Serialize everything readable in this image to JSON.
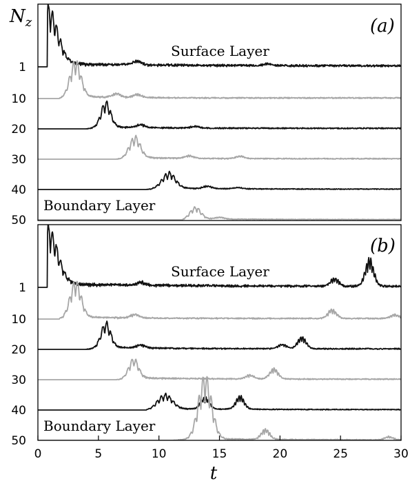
{
  "chart_data": [
    {
      "type": "line",
      "panel_label": "(a)",
      "y_label": "N_z",
      "x_label": "t",
      "xlim": [
        0,
        30
      ],
      "y_tick_labels": [
        "1",
        "10",
        "20",
        "30",
        "40",
        "50"
      ],
      "annotations": [
        "Surface Layer",
        "Boundary Layer"
      ],
      "colors": {
        "dark": "#111111",
        "light": "#a6a6a6"
      },
      "series": [
        {
          "layer": 1,
          "color": "dark",
          "peak_t": 0.8,
          "peak_height": 85,
          "peak_width": 0.8,
          "noise_amp": 5.0,
          "noise_decay": 0.12,
          "onset": 0.8,
          "extra_bursts": [
            {
              "t": 8.2,
              "h": 6
            },
            {
              "t": 19,
              "h": 3
            }
          ]
        },
        {
          "layer": 10,
          "color": "light",
          "peak_t": 3.1,
          "peak_height": 55,
          "peak_width": 0.45,
          "noise_amp": 3.0,
          "noise_decay": 0.25,
          "onset": 1.8,
          "extra_bursts": [
            {
              "t": 6.5,
              "h": 6
            },
            {
              "t": 8.2,
              "h": 5
            }
          ]
        },
        {
          "layer": 20,
          "color": "dark",
          "peak_t": 5.6,
          "peak_height": 38,
          "peak_width": 0.4,
          "noise_amp": 3.0,
          "noise_decay": 0.25,
          "onset": 4.0,
          "extra_bursts": [
            {
              "t": 8.5,
              "h": 5
            },
            {
              "t": 13,
              "h": 3
            }
          ]
        },
        {
          "layer": 30,
          "color": "light",
          "peak_t": 8.0,
          "peak_height": 32,
          "peak_width": 0.45,
          "noise_amp": 2.5,
          "noise_decay": 0.25,
          "onset": 6.5,
          "extra_bursts": [
            {
              "t": 12.5,
              "h": 4
            },
            {
              "t": 16.7,
              "h": 4
            }
          ]
        },
        {
          "layer": 40,
          "color": "dark",
          "peak_t": 10.8,
          "peak_height": 24,
          "peak_width": 0.55,
          "noise_amp": 2.0,
          "noise_decay": 0.2,
          "onset": 9.0,
          "extra_bursts": [
            {
              "t": 14,
              "h": 4
            },
            {
              "t": 16.5,
              "h": 2
            }
          ]
        },
        {
          "layer": 50,
          "color": "light",
          "peak_t": 13.0,
          "peak_height": 18,
          "peak_width": 0.45,
          "noise_amp": 1.5,
          "noise_decay": 0.2,
          "onset": 12.0,
          "extra_bursts": [
            {
              "t": 15,
              "h": 3
            }
          ]
        }
      ]
    },
    {
      "type": "line",
      "panel_label": "(b)",
      "y_label": "N_z",
      "x_label": "t",
      "xlim": [
        0,
        30
      ],
      "x_ticks": [
        0,
        5,
        10,
        15,
        20,
        25,
        30
      ],
      "y_tick_labels": [
        "1",
        "10",
        "20",
        "30",
        "40",
        "50"
      ],
      "annotations": [
        "Surface Layer",
        "Boundary Layer"
      ],
      "colors": {
        "dark": "#111111",
        "light": "#a6a6a6"
      },
      "series": [
        {
          "layer": 1,
          "color": "dark",
          "peak_t": 0.8,
          "peak_height": 85,
          "peak_width": 0.8,
          "noise_amp": 5.0,
          "noise_decay": 0.1,
          "onset": 0.8,
          "extra_bursts": [
            {
              "t": 8.5,
              "h": 5
            },
            {
              "t": 24.5,
              "h": 12
            },
            {
              "t": 27.4,
              "h": 42
            }
          ]
        },
        {
          "layer": 10,
          "color": "light",
          "peak_t": 3.1,
          "peak_height": 55,
          "peak_width": 0.45,
          "noise_amp": 3.0,
          "noise_decay": 0.2,
          "onset": 1.8,
          "extra_bursts": [
            {
              "t": 8,
              "h": 6
            },
            {
              "t": 24.3,
              "h": 14
            },
            {
              "t": 29.5,
              "h": 6
            }
          ]
        },
        {
          "layer": 20,
          "color": "dark",
          "peak_t": 5.6,
          "peak_height": 38,
          "peak_width": 0.4,
          "noise_amp": 3.0,
          "noise_decay": 0.2,
          "onset": 4.0,
          "extra_bursts": [
            {
              "t": 8.5,
              "h": 5
            },
            {
              "t": 20.2,
              "h": 7
            },
            {
              "t": 21.8,
              "h": 18
            }
          ]
        },
        {
          "layer": 30,
          "color": "light",
          "peak_t": 7.9,
          "peak_height": 30,
          "peak_width": 0.4,
          "noise_amp": 2.5,
          "noise_decay": 0.15,
          "onset": 6.5,
          "extra_bursts": [
            {
              "t": 17.5,
              "h": 6
            },
            {
              "t": 19.5,
              "h": 16
            }
          ]
        },
        {
          "layer": 40,
          "color": "dark",
          "peak_t": 10.5,
          "peak_height": 22,
          "peak_width": 0.6,
          "noise_amp": 2.0,
          "noise_decay": 0.15,
          "onset": 9.0,
          "extra_bursts": [
            {
              "t": 13.8,
              "h": 18
            },
            {
              "t": 16.7,
              "h": 20
            }
          ]
        },
        {
          "layer": 50,
          "color": "light",
          "peak_t": 13.8,
          "peak_height": 95,
          "peak_width": 0.55,
          "noise_amp": 2.0,
          "noise_decay": 0.15,
          "onset": 11.2,
          "extra_bursts": [
            {
              "t": 18.8,
              "h": 16
            },
            {
              "t": 29,
              "h": 5
            }
          ]
        }
      ]
    }
  ]
}
